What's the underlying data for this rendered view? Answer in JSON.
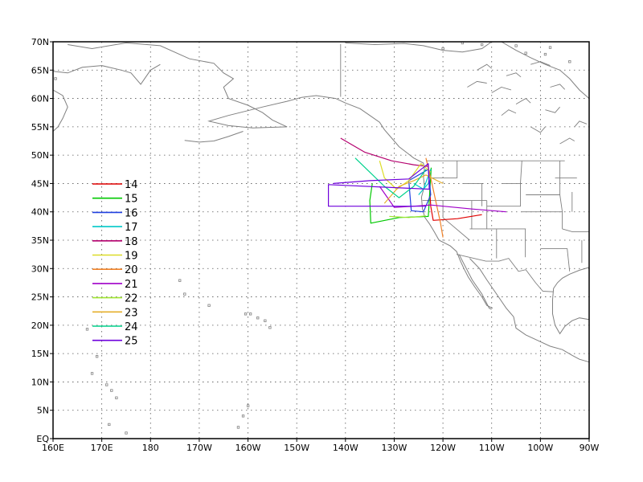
{
  "map": {
    "lat_ticks": [
      "70N",
      "65N",
      "60N",
      "55N",
      "50N",
      "45N",
      "40N",
      "35N",
      "30N",
      "25N",
      "20N",
      "15N",
      "10N",
      "5N",
      "EQ"
    ],
    "lon_ticks": [
      "160E",
      "170E",
      "180",
      "170W",
      "160W",
      "150W",
      "140W",
      "130W",
      "120W",
      "110W",
      "100W",
      "90W"
    ],
    "lon_range": [
      160,
      270
    ],
    "lat_range": [
      0,
      70
    ],
    "grid": "dotted",
    "coast_color": "#808080"
  },
  "legend": {
    "placement": "left-middle",
    "entries": [
      {
        "label": "14",
        "color": "#e00000"
      },
      {
        "label": "15",
        "color": "#00c800"
      },
      {
        "label": "16",
        "color": "#2040e0"
      },
      {
        "label": "17",
        "color": "#00c8c8"
      },
      {
        "label": "18",
        "color": "#b4006e"
      },
      {
        "label": "19",
        "color": "#dcdc28"
      },
      {
        "label": "20",
        "color": "#f08228"
      },
      {
        "label": "21",
        "color": "#a000c8"
      },
      {
        "label": "22",
        "color": "#a0e632"
      },
      {
        "label": "23",
        "color": "#e6af2d"
      },
      {
        "label": "24",
        "color": "#00d28c"
      },
      {
        "label": "25",
        "color": "#6e00dc"
      }
    ]
  },
  "tracks": [
    {
      "id": "14",
      "points": [
        [
          237.0,
          48.0
        ],
        [
          237.3,
          44.0
        ],
        [
          237.5,
          41.0
        ],
        [
          238.0,
          38.5
        ],
        [
          243.0,
          38.8
        ],
        [
          248.0,
          39.5
        ]
      ]
    },
    {
      "id": "15",
      "points": [
        [
          225.5,
          45.0
        ],
        [
          225.0,
          42.0
        ],
        [
          225.2,
          38.0
        ],
        [
          231.0,
          39.0
        ],
        [
          237.0,
          39.2
        ],
        [
          237.6,
          47.8
        ]
      ]
    },
    {
      "id": "16",
      "points": [
        [
          233.0,
          45.5
        ],
        [
          237.0,
          47.5
        ],
        [
          237.5,
          43.0
        ],
        [
          236.0,
          40.0
        ],
        [
          233.5,
          40.2
        ],
        [
          233.0,
          45.5
        ]
      ]
    },
    {
      "id": "17",
      "points": [
        [
          234.0,
          45.0
        ],
        [
          236.0,
          44.0
        ],
        [
          237.5,
          47.5
        ],
        [
          237.0,
          45.0
        ],
        [
          235.0,
          43.0
        ]
      ]
    },
    {
      "id": "18",
      "points": [
        [
          219.0,
          53.0
        ],
        [
          224.0,
          50.5
        ],
        [
          229.5,
          49.0
        ],
        [
          234.0,
          48.3
        ],
        [
          237.0,
          48.0
        ]
      ]
    },
    {
      "id": "19",
      "points": [
        [
          227.0,
          49.0
        ],
        [
          228.0,
          46.0
        ],
        [
          230.5,
          44.0
        ],
        [
          233.0,
          45.5
        ],
        [
          235.5,
          48.5
        ],
        [
          237.5,
          47.0
        ]
      ]
    },
    {
      "id": "20",
      "points": [
        [
          236.5,
          49.5
        ],
        [
          237.5,
          46.0
        ],
        [
          238.5,
          42.0
        ],
        [
          239.5,
          38.0
        ],
        [
          240.0,
          35.5
        ]
      ]
    },
    {
      "id": "21",
      "points": [
        [
          227.0,
          44.5
        ],
        [
          230.0,
          40.8
        ],
        [
          234.0,
          41.0
        ],
        [
          237.5,
          41.2
        ],
        [
          246.0,
          40.5
        ],
        [
          253.0,
          40.0
        ]
      ]
    },
    {
      "id": "22",
      "points": [
        [
          229.0,
          39.2
        ],
        [
          233.0,
          39.0
        ],
        [
          236.5,
          39.3
        ]
      ]
    },
    {
      "id": "23",
      "points": [
        [
          228.0,
          41.5
        ],
        [
          231.0,
          44.5
        ],
        [
          234.0,
          45.5
        ],
        [
          236.5,
          46.5
        ],
        [
          240.0,
          45.0
        ]
      ]
    },
    {
      "id": "24",
      "points": [
        [
          222.0,
          49.5
        ],
        [
          225.0,
          47.0
        ],
        [
          228.0,
          44.5
        ],
        [
          231.0,
          42.5
        ],
        [
          234.0,
          44.5
        ],
        [
          236.5,
          47.5
        ]
      ]
    },
    {
      "id": "25",
      "points": [
        [
          217.5,
          45.0
        ],
        [
          225.0,
          45.5
        ],
        [
          233.0,
          45.8
        ],
        [
          237.0,
          48.5
        ],
        [
          237.2,
          44.0
        ],
        [
          216.5,
          44.8
        ],
        [
          216.5,
          41.0
        ],
        [
          236.5,
          41.0
        ]
      ]
    }
  ]
}
